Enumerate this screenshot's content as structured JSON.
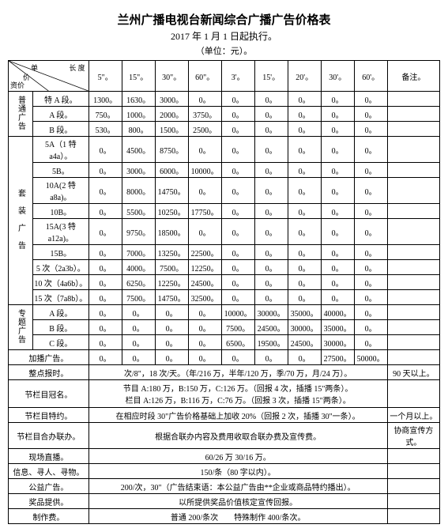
{
  "title": "兰州广播电视台新闻综合广播广告价格表",
  "subtitle": "2017 年 1 月 1 日起执行。",
  "unit": "（单位：元）。",
  "diag": {
    "top": "单",
    "right": "长 度",
    "mid": "价",
    "bottom": "资价"
  },
  "cols": [
    "5\"。",
    "15\"。",
    "30\"。",
    "60\"。",
    "3'。",
    "15'。",
    "20'。",
    "30'。",
    "60'。"
  ],
  "noteHead": "备注。",
  "cat1": "普通广告",
  "rows1": [
    {
      "seg": "特 A 段。",
      "v": [
        "1300。",
        "1630。",
        "3000。",
        "0。",
        "0。",
        "0。",
        "0。",
        "0。",
        "0。"
      ]
    },
    {
      "seg": "A 段。",
      "v": [
        "750。",
        "1000。",
        "2000。",
        "3750。",
        "0。",
        "0。",
        "0。",
        "0。",
        "0。"
      ]
    },
    {
      "seg": "B 段。",
      "v": [
        "530。",
        "800。",
        "1500。",
        "2500。",
        "0。",
        "0。",
        "0。",
        "0。",
        "0。"
      ]
    }
  ],
  "cat2": "套　装　广　告",
  "rows2": [
    {
      "seg": "5A（1 特 a4a）。",
      "v": [
        "0。",
        "4500。",
        "8750。",
        "0。",
        "0。",
        "0。",
        "0。",
        "0。",
        "0。"
      ]
    },
    {
      "seg": "5B。",
      "v": [
        "0。",
        "3000。",
        "6000。",
        "10000。",
        "0。",
        "0。",
        "0。",
        "0。",
        "0。"
      ]
    },
    {
      "seg": "10A(2 特 a8a)。",
      "v": [
        "0。",
        "8000。",
        "14750。",
        "0。",
        "0。",
        "0。",
        "0。",
        "0。",
        "0。"
      ]
    },
    {
      "seg": "10B。",
      "v": [
        "0。",
        "5500。",
        "10250。",
        "17750。",
        "0。",
        "0。",
        "0。",
        "0。",
        "0。"
      ]
    },
    {
      "seg": "15A(3 特 a12a)。",
      "v": [
        "0。",
        "9750。",
        "18500。",
        "0。",
        "0。",
        "0。",
        "0。",
        "0。",
        "0。"
      ]
    },
    {
      "seg": "15B。",
      "v": [
        "0。",
        "7000。",
        "13250。",
        "22500。",
        "0。",
        "0。",
        "0。",
        "0。",
        "0。"
      ]
    },
    {
      "seg": "5 次（2a3b）。",
      "v": [
        "0。",
        "4000。",
        "7500。",
        "12250。",
        "0。",
        "0。",
        "0。",
        "0。",
        "0。"
      ]
    },
    {
      "seg": "10 次（4a6b）。",
      "v": [
        "0。",
        "6250。",
        "12250。",
        "24500。",
        "0。",
        "0。",
        "0。",
        "0。",
        "0。"
      ]
    },
    {
      "seg": "15 次（7a8b）。",
      "v": [
        "0。",
        "7500。",
        "14750。",
        "32500。",
        "0。",
        "0。",
        "0。",
        "0。",
        "0。"
      ]
    }
  ],
  "cat3": "专题广告",
  "rows3": [
    {
      "seg": "A 段。",
      "v": [
        "0。",
        "0。",
        "0。",
        "0。",
        "10000。",
        "30000。",
        "35000。",
        "40000。",
        "0。"
      ]
    },
    {
      "seg": "B 段。",
      "v": [
        "0。",
        "0。",
        "0。",
        "0。",
        "7500。",
        "24500。",
        "30000。",
        "35000。",
        "0。"
      ]
    },
    {
      "seg": "C 段。",
      "v": [
        "0。",
        "0。",
        "0。",
        "0。",
        "6500。",
        "19500。",
        "24500。",
        "30000。",
        "0。"
      ]
    }
  ],
  "extraRow": {
    "seg": "加播广告。",
    "v": [
      "0。",
      "0。",
      "0。",
      "0。",
      "0。",
      "0。",
      "0。",
      "27500。",
      "50000。"
    ]
  },
  "foot": [
    {
      "label": "整点报时。",
      "body": "次/8\"，18 次/天。（年/216 万，半年/120 万，季/70 万，月/24 万）。",
      "note": "90 天以上。"
    },
    {
      "label": "节栏目冠名。",
      "body": "节目 A:180 万，B:150 万，C:126 万。（回报 4 次，插播 15\"两条）。\n栏目 A:126 万，B:116 万，C:76 万。（回报 3 次，插播 15\"两条）。",
      "note": ""
    },
    {
      "label": "节栏目特约。",
      "body": "在相应时段 30\"广告价格基础上加收 20%（回报 2 次，插播 30\"一条）。",
      "note": "一个月以上。"
    },
    {
      "label": "节栏目合办联办。",
      "body": "根据合联办内容及费用收取合联办费及宣传费。",
      "note": "协商宣传方式。"
    },
    {
      "label": "现场直播。",
      "body": "60/26 万 30/16 万。",
      "note": ""
    },
    {
      "label": "信息、寻人、寻物。",
      "body": "150/条（80 字以内）。",
      "note": ""
    },
    {
      "label": "公益广告。",
      "body": "200/次，30\"（广告结束语：本公益广告由**企业或商品特约播出）。",
      "note": ""
    },
    {
      "label": "奖品提供。",
      "body": "以所提供奖品价值核定宣传回报。",
      "note": ""
    },
    {
      "label": "制作费。",
      "body": "普通 200/条次　　特殊制作 400/条次。",
      "note": ""
    }
  ]
}
